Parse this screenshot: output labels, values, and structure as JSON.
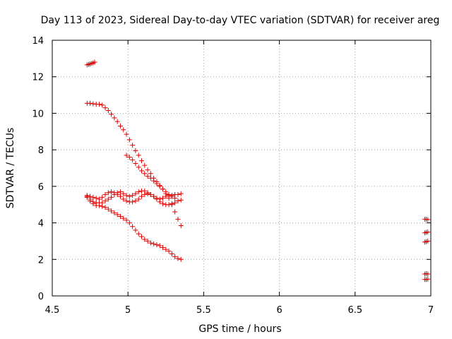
{
  "chart_data": {
    "type": "scatter",
    "title": "Day 113 of 2023, Sidereal Day-to-day VTEC variation (SDTVAR) for receiver areg",
    "xlabel": "GPS time / hours",
    "ylabel": "SDTVAR / TECUs",
    "xlim": [
      4.5,
      7
    ],
    "ylim": [
      0,
      14
    ],
    "xticks": [
      4.5,
      5,
      5.5,
      6,
      6.5,
      7
    ],
    "xtick_labels": [
      "4.5",
      "5",
      "5.5",
      "6",
      "6.5",
      "7"
    ],
    "yticks": [
      0,
      2,
      4,
      6,
      8,
      10,
      12,
      14
    ],
    "ytick_labels": [
      "0",
      "2",
      "4",
      "6",
      "8",
      "10",
      "12",
      "14"
    ],
    "grid": true,
    "marker": "plus",
    "color": "#e00000",
    "series": [
      {
        "x": [
          4.73,
          4.74,
          4.75,
          4.76,
          4.77,
          4.78
        ],
        "y": [
          12.65,
          12.68,
          12.7,
          12.73,
          12.76,
          12.8
        ]
      },
      {
        "x": [
          4.73,
          4.75,
          4.77,
          4.79,
          4.81,
          4.83,
          4.85,
          4.87,
          4.89,
          4.91,
          4.93,
          4.95,
          4.97,
          4.99,
          5.01,
          5.03,
          5.05,
          5.07,
          5.09,
          5.11,
          5.13,
          5.15,
          5.17,
          5.19,
          5.21,
          5.23,
          5.25,
          5.27,
          5.29,
          5.31,
          5.33,
          5.35
        ],
        "y": [
          10.55,
          10.55,
          10.52,
          10.5,
          10.5,
          10.45,
          10.3,
          10.15,
          9.95,
          9.75,
          9.55,
          9.3,
          9.1,
          8.85,
          8.55,
          8.25,
          7.95,
          7.7,
          7.4,
          7.15,
          6.9,
          6.7,
          6.45,
          6.25,
          6.05,
          5.85,
          5.6,
          5.35,
          5.0,
          4.6,
          4.2,
          3.85
        ]
      },
      {
        "x": [
          4.99,
          5.01,
          5.03,
          5.05,
          5.07,
          5.09,
          5.11,
          5.13,
          5.15,
          5.17,
          5.19,
          5.21,
          5.23,
          5.25,
          5.27,
          5.29,
          5.31
        ],
        "y": [
          7.7,
          7.6,
          7.45,
          7.25,
          7.05,
          6.85,
          6.7,
          6.55,
          6.45,
          6.3,
          6.15,
          6.0,
          5.85,
          5.7,
          5.55,
          5.45,
          5.35
        ]
      },
      {
        "x": [
          4.73,
          4.75,
          4.77,
          4.79,
          4.81,
          4.83,
          4.85,
          4.87,
          4.89,
          4.91,
          4.93,
          4.95,
          4.97,
          4.99,
          5.01,
          5.03,
          5.05,
          5.07,
          5.09,
          5.11,
          5.13,
          5.15,
          5.17,
          5.19,
          5.21,
          5.23,
          5.25,
          5.27,
          5.29,
          5.31,
          5.33,
          5.35
        ],
        "y": [
          5.5,
          5.45,
          5.4,
          5.35,
          5.3,
          5.4,
          5.55,
          5.65,
          5.7,
          5.65,
          5.55,
          5.45,
          5.3,
          5.2,
          5.15,
          5.15,
          5.2,
          5.3,
          5.45,
          5.55,
          5.6,
          5.55,
          5.45,
          5.3,
          5.15,
          5.05,
          5.0,
          5.0,
          5.05,
          5.1,
          5.2,
          5.25
        ]
      },
      {
        "x": [
          4.73,
          4.75,
          4.77,
          4.79,
          4.81,
          4.83,
          4.85,
          4.87,
          4.89,
          4.91,
          4.93,
          4.95,
          4.97,
          4.99,
          5.01,
          5.03,
          5.05,
          5.07,
          5.09,
          5.11,
          5.13,
          5.15,
          5.17,
          5.19,
          5.21,
          5.23,
          5.25,
          5.27,
          5.29,
          5.31,
          5.33,
          5.35
        ],
        "y": [
          5.45,
          5.3,
          5.15,
          5.1,
          5.1,
          5.1,
          5.2,
          5.3,
          5.4,
          5.55,
          5.65,
          5.7,
          5.6,
          5.5,
          5.45,
          5.5,
          5.6,
          5.7,
          5.75,
          5.75,
          5.65,
          5.55,
          5.45,
          5.35,
          5.3,
          5.35,
          5.45,
          5.5,
          5.5,
          5.55,
          5.55,
          5.6
        ]
      },
      {
        "x": [
          4.73,
          4.75,
          4.77,
          4.79,
          4.81,
          4.83,
          4.85,
          4.87,
          4.89,
          4.91,
          4.93,
          4.95,
          4.97,
          4.99,
          5.01,
          5.03,
          5.05,
          5.07,
          5.09,
          5.11,
          5.13,
          5.15,
          5.17,
          5.19,
          5.21,
          5.23,
          5.25,
          5.27,
          5.29,
          5.31,
          5.33,
          5.35
        ],
        "y": [
          5.4,
          5.2,
          5.05,
          4.95,
          4.95,
          4.9,
          4.85,
          4.75,
          4.65,
          4.55,
          4.45,
          4.35,
          4.25,
          4.15,
          4.0,
          3.8,
          3.6,
          3.4,
          3.25,
          3.1,
          3.0,
          2.9,
          2.85,
          2.8,
          2.75,
          2.65,
          2.55,
          2.45,
          2.3,
          2.15,
          2.05,
          2.0
        ]
      },
      {
        "x": [
          6.96,
          6.97,
          6.98
        ],
        "y": [
          4.2,
          4.2,
          4.18
        ]
      },
      {
        "x": [
          6.96,
          6.97,
          6.98
        ],
        "y": [
          3.45,
          3.48,
          3.5
        ]
      },
      {
        "x": [
          6.96,
          6.97,
          6.98
        ],
        "y": [
          2.95,
          2.97,
          3.0
        ]
      },
      {
        "x": [
          6.96,
          6.97,
          6.98
        ],
        "y": [
          1.2,
          1.22,
          1.2
        ]
      },
      {
        "x": [
          6.96,
          6.97,
          6.98
        ],
        "y": [
          0.9,
          0.9,
          0.92
        ]
      }
    ]
  }
}
